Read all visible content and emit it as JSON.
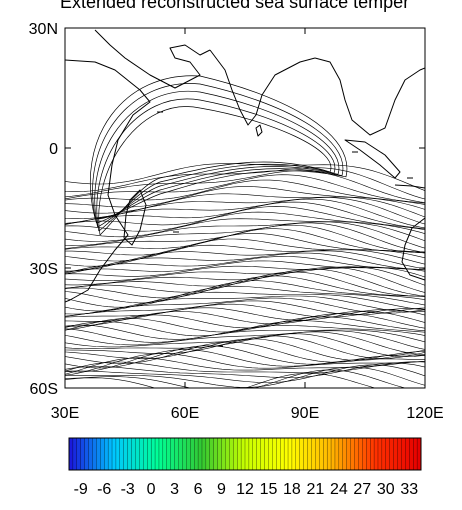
{
  "title": "Extended reconstructed sea surface temper",
  "map": {
    "lon_range": [
      30,
      120
    ],
    "lat_range": [
      -60,
      30
    ],
    "lat_ticks": [
      {
        "value": 30,
        "label": "30N"
      },
      {
        "value": 0,
        "label": "0"
      },
      {
        "value": -30,
        "label": "30S"
      },
      {
        "value": -60,
        "label": "60S"
      }
    ],
    "lon_ticks": [
      {
        "value": 30,
        "label": "30E"
      },
      {
        "value": 60,
        "label": "60E"
      },
      {
        "value": 90,
        "label": "90E"
      },
      {
        "value": 120,
        "label": "120E"
      }
    ],
    "contour_color": "#000000"
  },
  "colorbar": {
    "labels": [
      "-9",
      "-6",
      "-3",
      "0",
      "3",
      "6",
      "9",
      "12",
      "15",
      "18",
      "21",
      "24",
      "27",
      "30",
      "33"
    ],
    "range": [
      -10.5,
      34.5
    ],
    "colors": [
      "#1a1adc",
      "#00c8ff",
      "#00ff96",
      "#32c832",
      "#c8ff00",
      "#ffff00",
      "#ffb400",
      "#ff3200",
      "#e60000"
    ]
  }
}
